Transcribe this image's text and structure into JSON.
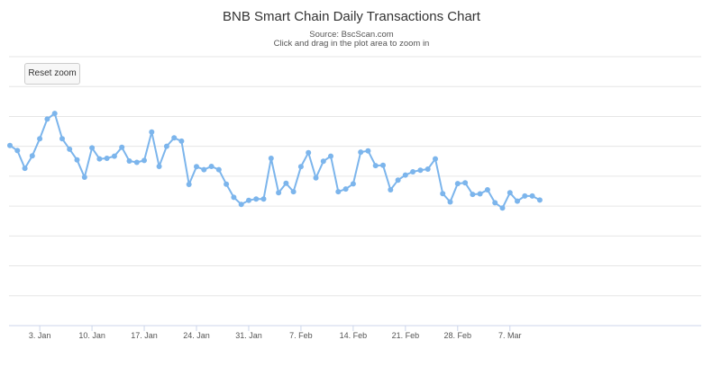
{
  "chart_data": {
    "type": "line",
    "title": "BNB Smart Chain Daily Transactions Chart",
    "subtitle_source": "Source: BscScan.com",
    "subtitle_hint": "Click and drag in the plot area to zoom in",
    "reset_zoom_label": "Reset zoom",
    "x_tick_labels": [
      "3. Jan",
      "10. Jan",
      "17. Jan",
      "24. Jan",
      "31. Jan",
      "7. Feb",
      "14. Feb",
      "21. Feb",
      "28. Feb",
      "7. Mar"
    ],
    "color": "#7cb5ec",
    "grid": true,
    "series": [
      {
        "values": [
          0.67,
          0.651,
          0.585,
          0.631,
          0.695,
          0.768,
          0.789,
          0.695,
          0.656,
          0.616,
          0.552,
          0.661,
          0.62,
          0.622,
          0.63,
          0.663,
          0.612,
          0.607,
          0.614,
          0.72,
          0.592,
          0.667,
          0.698,
          0.686,
          0.525,
          0.591,
          0.58,
          0.592,
          0.58,
          0.526,
          0.477,
          0.451,
          0.466,
          0.471,
          0.471,
          0.622,
          0.494,
          0.529,
          0.498,
          0.591,
          0.643,
          0.549,
          0.611,
          0.63,
          0.498,
          0.508,
          0.527,
          0.645,
          0.65,
          0.595,
          0.596,
          0.505,
          0.541,
          0.56,
          0.572,
          0.578,
          0.582,
          0.62,
          0.491,
          0.46,
          0.528,
          0.531,
          0.488,
          0.49,
          0.505,
          0.457,
          0.437,
          0.494,
          0.463,
          0.482,
          0.482,
          0.467
        ]
      }
    ]
  }
}
